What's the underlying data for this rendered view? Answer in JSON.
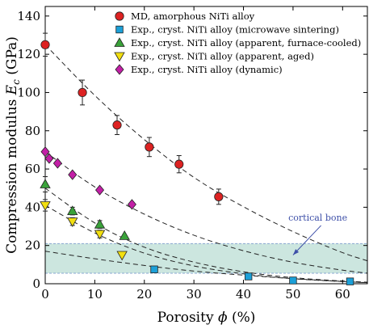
{
  "chart_data": {
    "type": "scatter",
    "xlabel_prefix": "Porosity ",
    "xlabel_symbol": "ϕ",
    "xlabel_suffix": " (%)",
    "ylabel_prefix": "Compression modulus ",
    "ylabel_symbol": "E",
    "ylabel_sub": "c",
    "ylabel_suffix": " (GPa)",
    "xlim": [
      0,
      65
    ],
    "ylim": [
      0,
      145
    ],
    "x_ticks": [
      0,
      10,
      20,
      30,
      40,
      50,
      60
    ],
    "y_ticks": [
      0,
      20,
      40,
      60,
      80,
      100,
      120,
      140
    ],
    "legend_position": "top-right",
    "band": {
      "y_min": 5.5,
      "y_max": 21,
      "color": "#cce6df",
      "edge_color": "#8aa8d0"
    },
    "annotation": {
      "text": "cortical bone",
      "color": "#3d4fa8",
      "label_at": [
        55,
        33
      ],
      "arrow_to": [
        50,
        15
      ]
    },
    "series": [
      {
        "name": "MD, amorphous NiTi alloy",
        "marker": "circle",
        "color": "#dd2222",
        "x": [
          0,
          7.5,
          14.5,
          21,
          27,
          35
        ],
        "y": [
          125,
          100,
          83,
          71.5,
          62.5,
          45.5
        ],
        "err": [
          6,
          6.5,
          5,
          5,
          4.5,
          4
        ]
      },
      {
        "name": "Exp., cryst. NiTi alloy (microwave sintering)",
        "marker": "square",
        "color": "#1ca0d8",
        "x": [
          22,
          41,
          50,
          61.5
        ],
        "y": [
          7.5,
          3.8,
          1.7,
          1.2
        ],
        "err": []
      },
      {
        "name": "Exp., cryst. NiTi alloy (apparent, furnace-cooled)",
        "marker": "triangle-up",
        "color": "#3aa23a",
        "x": [
          0,
          5.5,
          11,
          16
        ],
        "y": [
          52,
          38,
          31,
          25
        ],
        "err": [
          4,
          2,
          2,
          0
        ]
      },
      {
        "name": "Exp., cryst. NiTi alloy (apparent, aged)",
        "marker": "triangle-down",
        "color": "#f2df10",
        "x": [
          0,
          5.5,
          11,
          15.5
        ],
        "y": [
          41,
          32.5,
          26,
          15
        ],
        "err": [
          3,
          2,
          2,
          0
        ]
      },
      {
        "name": "Exp., cryst. NiTi alloy (dynamic)",
        "marker": "diamond",
        "color": "#c21fa6",
        "x": [
          0,
          0.8,
          2.5,
          5.5,
          11,
          17.5
        ],
        "y": [
          69,
          65.5,
          63,
          57,
          49,
          41.5
        ],
        "err": []
      }
    ],
    "fits": [
      {
        "x": [
          0,
          10,
          20,
          30,
          40,
          50,
          60,
          65
        ],
        "y": [
          125,
          98,
          75,
          55,
          40,
          27,
          16,
          12
        ]
      },
      {
        "x": [
          0,
          10,
          20,
          30,
          40,
          50,
          60,
          65
        ],
        "y": [
          69,
          50,
          36,
          25,
          17,
          11,
          7,
          5.5
        ]
      },
      {
        "x": [
          0,
          10,
          20,
          30,
          40,
          50,
          60,
          65
        ],
        "y": [
          50,
          31,
          18.5,
          11,
          6,
          3,
          1.4,
          0.8
        ]
      },
      {
        "x": [
          0,
          10,
          20,
          30,
          40,
          50,
          60,
          65
        ],
        "y": [
          41,
          26,
          15.5,
          9,
          5,
          2.5,
          1.1,
          0.6
        ]
      },
      {
        "x": [
          0,
          10,
          20,
          30,
          40,
          50,
          60,
          65
        ],
        "y": [
          17,
          13,
          9.5,
          6.5,
          4.5,
          2.6,
          1.2,
          0.5
        ]
      }
    ]
  }
}
